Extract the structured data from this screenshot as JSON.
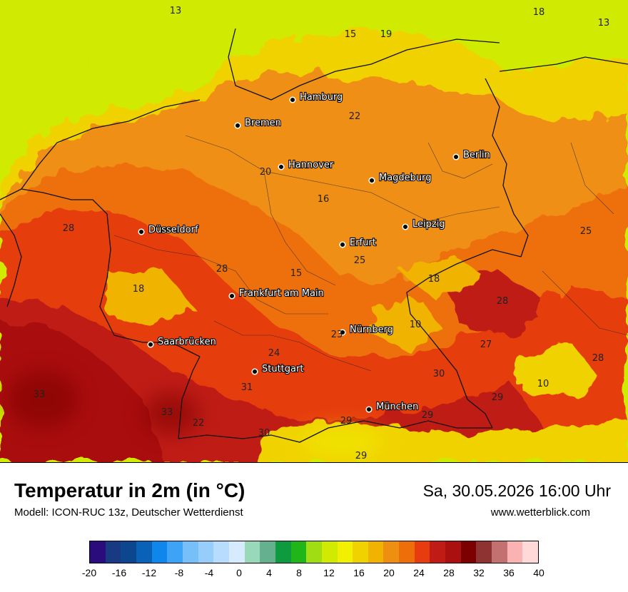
{
  "title": "Temperatur in 2m (in °C)",
  "subtitle": "Modell: ICON-RUC 13z, Deutscher Wetterdienst",
  "datetime": "Sa, 30.05.2026 16:00 Uhr",
  "website": "www.wetterblick.com",
  "cities": [
    {
      "name": "Hamburg"
    },
    {
      "name": "Bremen"
    },
    {
      "name": "Berlin"
    },
    {
      "name": "Hannover"
    },
    {
      "name": "Magdeburg"
    },
    {
      "name": "Düsseldorf"
    },
    {
      "name": "Leipzig"
    },
    {
      "name": "Erfurt"
    },
    {
      "name": "Frankfurt am Main"
    },
    {
      "name": "Nürnberg"
    },
    {
      "name": "Saarbrücken"
    },
    {
      "name": "Stuttgart"
    },
    {
      "name": "München"
    }
  ],
  "value_labels": [
    "13",
    "18",
    "13",
    "15",
    "19",
    "22",
    "20",
    "16",
    "28",
    "25",
    "28",
    "15",
    "18",
    "18",
    "25",
    "28",
    "23",
    "10",
    "24",
    "27",
    "28",
    "30",
    "31",
    "10",
    "33",
    "33",
    "29",
    "22",
    "30",
    "29",
    "29",
    "29"
  ],
  "legend": {
    "ticks": [
      "-20",
      "-16",
      "-12",
      "-8",
      "-4",
      "0",
      "4",
      "8",
      "12",
      "16",
      "20",
      "24",
      "28",
      "32",
      "36",
      "40"
    ],
    "colors": [
      "#2b0c7c",
      "#173a82",
      "#0b468f",
      "#0a62b8",
      "#0f86ec",
      "#3da3f7",
      "#77bff9",
      "#97cdfb",
      "#b8dcfd",
      "#d6ebfe",
      "#98d9b9",
      "#64b08f",
      "#0e9a3e",
      "#20b61a",
      "#a0dd12",
      "#d0ea02",
      "#f0f000",
      "#f0d200",
      "#f0b400",
      "#ef8f12",
      "#ee6f0a",
      "#e63c10",
      "#c01b14",
      "#aa1010",
      "#7c0000",
      "#8e3232",
      "#c27070",
      "#fab2b2",
      "#ffd8d8"
    ]
  }
}
